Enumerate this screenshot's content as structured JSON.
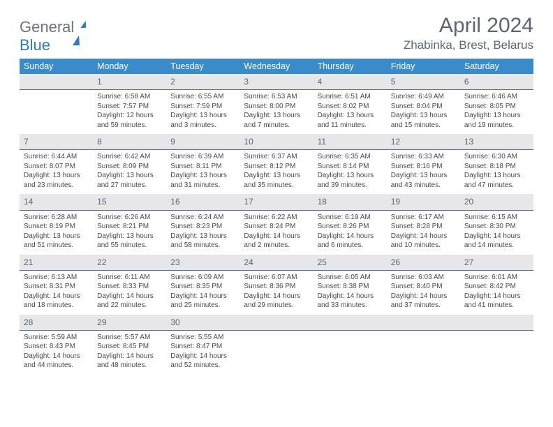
{
  "logo": {
    "word1": "General",
    "word2": "Blue"
  },
  "title": "April 2024",
  "location": "Zhabinka, Brest, Belarus",
  "colors": {
    "header_bg": "#3a8bc9",
    "header_text": "#ffffff",
    "daynum_bg": "#e7e7ea",
    "daynum_border": "#4b6e8f",
    "text": "#4a4a4a",
    "title": "#5c6670"
  },
  "weekdays": [
    "Sunday",
    "Monday",
    "Tuesday",
    "Wednesday",
    "Thursday",
    "Friday",
    "Saturday"
  ],
  "weeks": [
    [
      {
        "blank": true
      },
      {
        "n": "1",
        "sr": "Sunrise: 6:58 AM",
        "ss": "Sunset: 7:57 PM",
        "d1": "Daylight: 12 hours",
        "d2": "and 59 minutes."
      },
      {
        "n": "2",
        "sr": "Sunrise: 6:55 AM",
        "ss": "Sunset: 7:59 PM",
        "d1": "Daylight: 13 hours",
        "d2": "and 3 minutes."
      },
      {
        "n": "3",
        "sr": "Sunrise: 6:53 AM",
        "ss": "Sunset: 8:00 PM",
        "d1": "Daylight: 13 hours",
        "d2": "and 7 minutes."
      },
      {
        "n": "4",
        "sr": "Sunrise: 6:51 AM",
        "ss": "Sunset: 8:02 PM",
        "d1": "Daylight: 13 hours",
        "d2": "and 11 minutes."
      },
      {
        "n": "5",
        "sr": "Sunrise: 6:49 AM",
        "ss": "Sunset: 8:04 PM",
        "d1": "Daylight: 13 hours",
        "d2": "and 15 minutes."
      },
      {
        "n": "6",
        "sr": "Sunrise: 6:46 AM",
        "ss": "Sunset: 8:05 PM",
        "d1": "Daylight: 13 hours",
        "d2": "and 19 minutes."
      }
    ],
    [
      {
        "n": "7",
        "sr": "Sunrise: 6:44 AM",
        "ss": "Sunset: 8:07 PM",
        "d1": "Daylight: 13 hours",
        "d2": "and 23 minutes."
      },
      {
        "n": "8",
        "sr": "Sunrise: 6:42 AM",
        "ss": "Sunset: 8:09 PM",
        "d1": "Daylight: 13 hours",
        "d2": "and 27 minutes."
      },
      {
        "n": "9",
        "sr": "Sunrise: 6:39 AM",
        "ss": "Sunset: 8:11 PM",
        "d1": "Daylight: 13 hours",
        "d2": "and 31 minutes."
      },
      {
        "n": "10",
        "sr": "Sunrise: 6:37 AM",
        "ss": "Sunset: 8:12 PM",
        "d1": "Daylight: 13 hours",
        "d2": "and 35 minutes."
      },
      {
        "n": "11",
        "sr": "Sunrise: 6:35 AM",
        "ss": "Sunset: 8:14 PM",
        "d1": "Daylight: 13 hours",
        "d2": "and 39 minutes."
      },
      {
        "n": "12",
        "sr": "Sunrise: 6:33 AM",
        "ss": "Sunset: 8:16 PM",
        "d1": "Daylight: 13 hours",
        "d2": "and 43 minutes."
      },
      {
        "n": "13",
        "sr": "Sunrise: 6:30 AM",
        "ss": "Sunset: 8:18 PM",
        "d1": "Daylight: 13 hours",
        "d2": "and 47 minutes."
      }
    ],
    [
      {
        "n": "14",
        "sr": "Sunrise: 6:28 AM",
        "ss": "Sunset: 8:19 PM",
        "d1": "Daylight: 13 hours",
        "d2": "and 51 minutes."
      },
      {
        "n": "15",
        "sr": "Sunrise: 6:26 AM",
        "ss": "Sunset: 8:21 PM",
        "d1": "Daylight: 13 hours",
        "d2": "and 55 minutes."
      },
      {
        "n": "16",
        "sr": "Sunrise: 6:24 AM",
        "ss": "Sunset: 8:23 PM",
        "d1": "Daylight: 13 hours",
        "d2": "and 58 minutes."
      },
      {
        "n": "17",
        "sr": "Sunrise: 6:22 AM",
        "ss": "Sunset: 8:24 PM",
        "d1": "Daylight: 14 hours",
        "d2": "and 2 minutes."
      },
      {
        "n": "18",
        "sr": "Sunrise: 6:19 AM",
        "ss": "Sunset: 8:26 PM",
        "d1": "Daylight: 14 hours",
        "d2": "and 6 minutes."
      },
      {
        "n": "19",
        "sr": "Sunrise: 6:17 AM",
        "ss": "Sunset: 8:28 PM",
        "d1": "Daylight: 14 hours",
        "d2": "and 10 minutes."
      },
      {
        "n": "20",
        "sr": "Sunrise: 6:15 AM",
        "ss": "Sunset: 8:30 PM",
        "d1": "Daylight: 14 hours",
        "d2": "and 14 minutes."
      }
    ],
    [
      {
        "n": "21",
        "sr": "Sunrise: 6:13 AM",
        "ss": "Sunset: 8:31 PM",
        "d1": "Daylight: 14 hours",
        "d2": "and 18 minutes."
      },
      {
        "n": "22",
        "sr": "Sunrise: 6:11 AM",
        "ss": "Sunset: 8:33 PM",
        "d1": "Daylight: 14 hours",
        "d2": "and 22 minutes."
      },
      {
        "n": "23",
        "sr": "Sunrise: 6:09 AM",
        "ss": "Sunset: 8:35 PM",
        "d1": "Daylight: 14 hours",
        "d2": "and 25 minutes."
      },
      {
        "n": "24",
        "sr": "Sunrise: 6:07 AM",
        "ss": "Sunset: 8:36 PM",
        "d1": "Daylight: 14 hours",
        "d2": "and 29 minutes."
      },
      {
        "n": "25",
        "sr": "Sunrise: 6:05 AM",
        "ss": "Sunset: 8:38 PM",
        "d1": "Daylight: 14 hours",
        "d2": "and 33 minutes."
      },
      {
        "n": "26",
        "sr": "Sunrise: 6:03 AM",
        "ss": "Sunset: 8:40 PM",
        "d1": "Daylight: 14 hours",
        "d2": "and 37 minutes."
      },
      {
        "n": "27",
        "sr": "Sunrise: 6:01 AM",
        "ss": "Sunset: 8:42 PM",
        "d1": "Daylight: 14 hours",
        "d2": "and 41 minutes."
      }
    ],
    [
      {
        "n": "28",
        "sr": "Sunrise: 5:59 AM",
        "ss": "Sunset: 8:43 PM",
        "d1": "Daylight: 14 hours",
        "d2": "and 44 minutes."
      },
      {
        "n": "29",
        "sr": "Sunrise: 5:57 AM",
        "ss": "Sunset: 8:45 PM",
        "d1": "Daylight: 14 hours",
        "d2": "and 48 minutes."
      },
      {
        "n": "30",
        "sr": "Sunrise: 5:55 AM",
        "ss": "Sunset: 8:47 PM",
        "d1": "Daylight: 14 hours",
        "d2": "and 52 minutes."
      },
      {
        "blank": true
      },
      {
        "blank": true
      },
      {
        "blank": true
      },
      {
        "blank": true
      }
    ]
  ]
}
